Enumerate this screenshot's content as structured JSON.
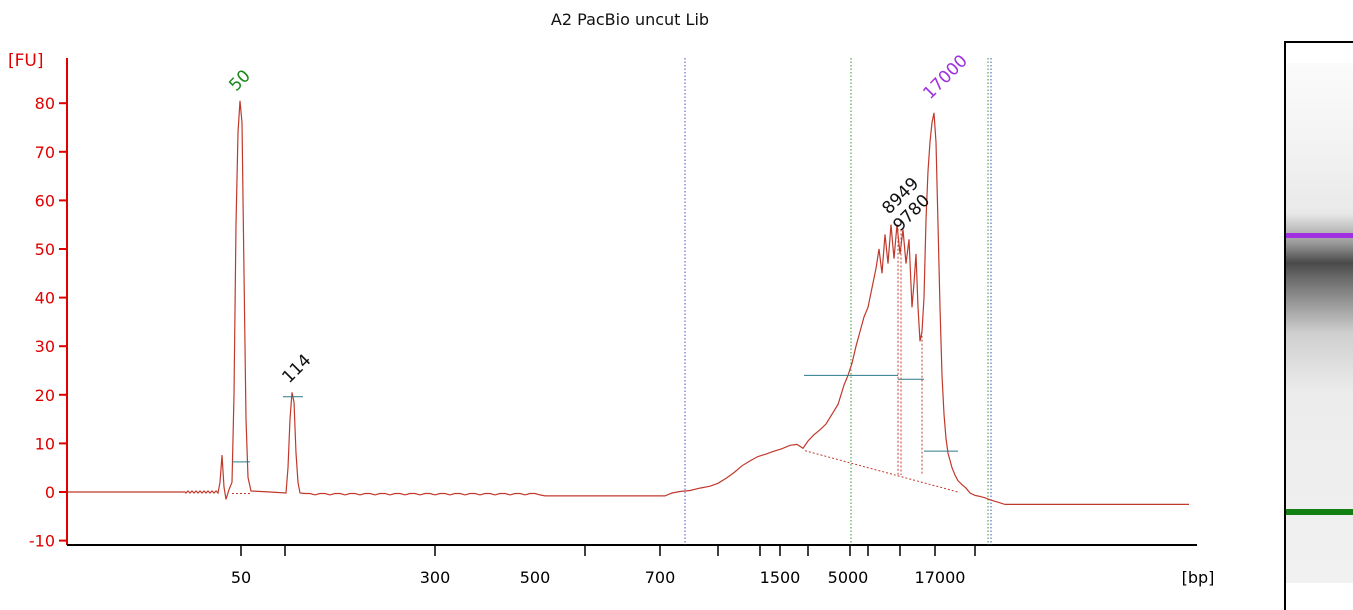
{
  "colors": {
    "axis": "#e00000",
    "trace": "#c0392b",
    "marker_green": "#1a8a1a",
    "marker_purple": "#a030e0",
    "region_blue": "#4a4ad0",
    "region_green": "#2a9a2a",
    "baseline_teal": "#2a7a8a",
    "gel_upper_band": "#a030e0",
    "gel_lower_band": "#128012"
  },
  "chart_data": {
    "type": "line",
    "title": "A2 PacBio uncut Lib",
    "ylabel": "[FU]",
    "xlabel": "[bp]",
    "ylim": [
      -10,
      85
    ],
    "yticks": [
      -10,
      0,
      10,
      20,
      30,
      40,
      50,
      60,
      70,
      80
    ],
    "xtick_labels": [
      "50",
      "300",
      "500",
      "700",
      "1500",
      "5000",
      "17000"
    ],
    "peaks": [
      {
        "label": "50",
        "kind": "lower_marker",
        "fu": 80.5
      },
      {
        "label": "114",
        "kind": "peak",
        "fu": 20.5
      },
      {
        "label": "8949",
        "kind": "peak",
        "fu": 55
      },
      {
        "label": "9780",
        "kind": "peak",
        "fu": 52
      },
      {
        "label": "17000",
        "kind": "upper_marker",
        "fu": 78
      }
    ]
  }
}
